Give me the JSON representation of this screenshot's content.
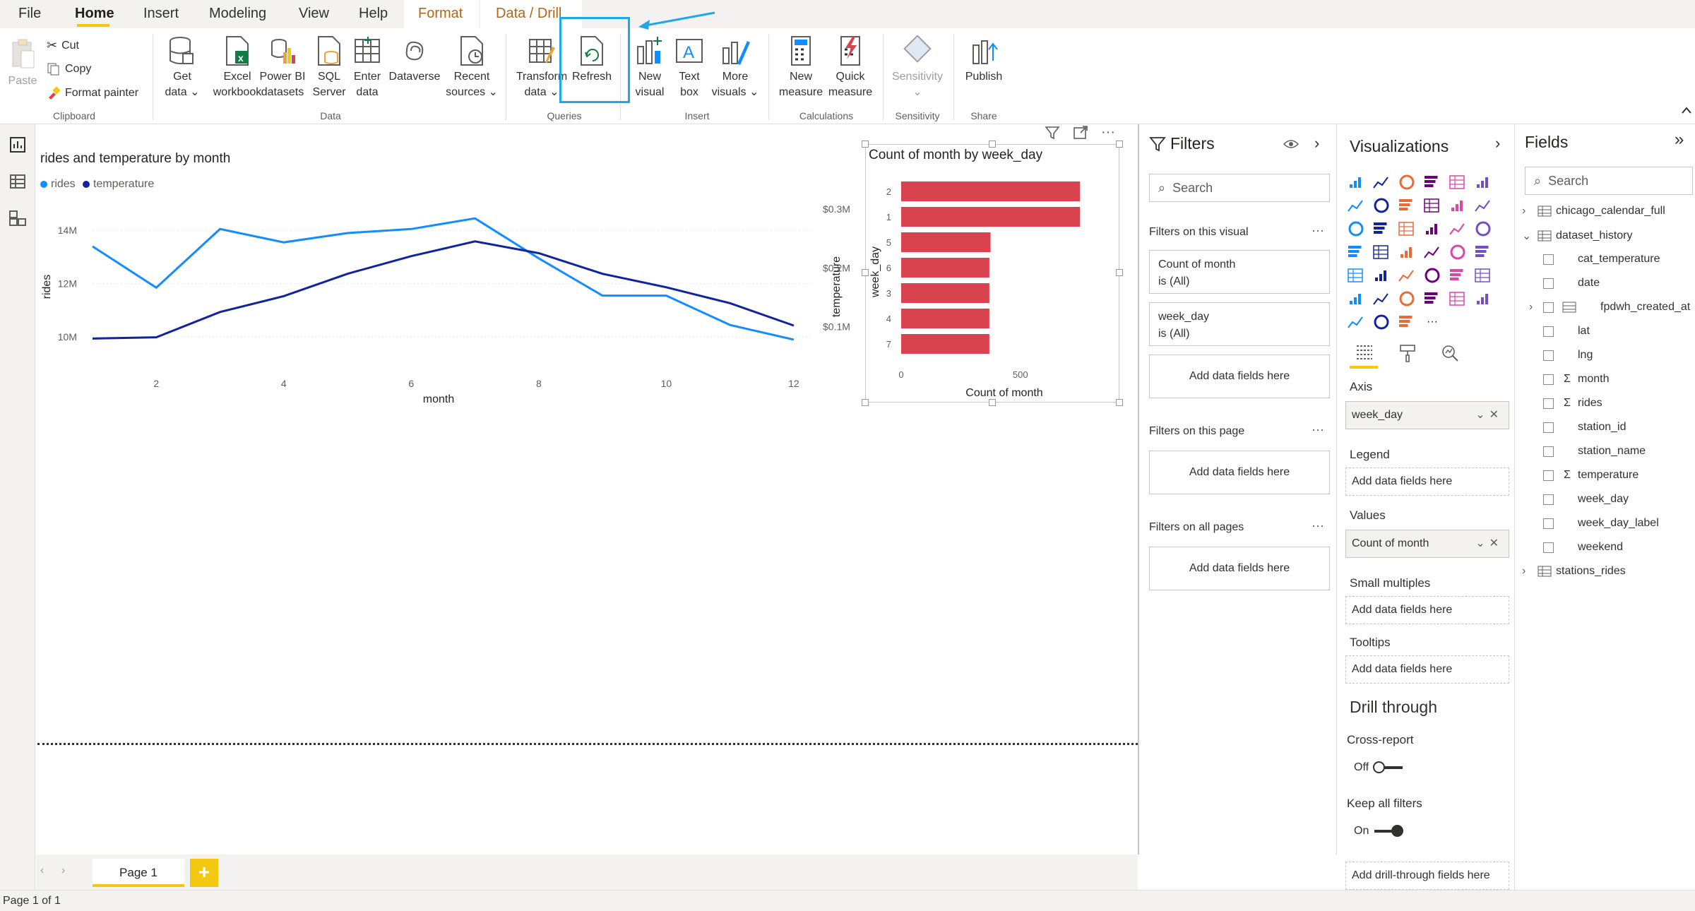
{
  "menu": {
    "items": [
      "File",
      "Home",
      "Insert",
      "Modeling",
      "View",
      "Help",
      "Format",
      "Data / Drill"
    ],
    "active": "Home"
  },
  "ribbon": {
    "clipboard": {
      "paste": "Paste",
      "cut": "Cut",
      "copy": "Copy",
      "format_painter": "Format painter",
      "group": "Clipboard"
    },
    "data": {
      "get_data": [
        "Get",
        "data ⌄"
      ],
      "excel": [
        "Excel",
        "workbook"
      ],
      "pbi": [
        "Power BI",
        "datasets"
      ],
      "sql": [
        "SQL",
        "Server"
      ],
      "enter": [
        "Enter",
        "data"
      ],
      "dataverse": "Dataverse",
      "recent": [
        "Recent",
        "sources ⌄"
      ],
      "group": "Data"
    },
    "queries": {
      "transform": [
        "Transform",
        "data ⌄"
      ],
      "refresh": "Refresh",
      "group": "Queries"
    },
    "insert": {
      "new_visual": [
        "New",
        "visual"
      ],
      "text_box": [
        "Text",
        "box"
      ],
      "more_visuals": [
        "More",
        "visuals ⌄"
      ],
      "group": "Insert"
    },
    "calculations": {
      "new_measure": [
        "New",
        "measure"
      ],
      "quick_measure": [
        "Quick",
        "measure"
      ],
      "group": "Calculations"
    },
    "sensitivity": {
      "label": "Sensitivity",
      "caret": "⌄",
      "group": "Sensitivity"
    },
    "share": {
      "publish": "Publish",
      "group": "Share"
    }
  },
  "line_chart": {
    "title": "rides and temperature by month",
    "legend": [
      "rides",
      "temperature"
    ],
    "xlabel": "month",
    "ylabel_left": "rides",
    "ylabel_right": "temperature",
    "x_ticks": [
      "2",
      "4",
      "6",
      "8",
      "10",
      "12"
    ],
    "y_left_ticks": [
      "10M",
      "12M",
      "14M"
    ],
    "y_right_ticks": [
      "$0.1M",
      "$0.2M",
      "$0.3M"
    ]
  },
  "bar_chart": {
    "title": "Count of month by week_day",
    "xlabel": "Count of month",
    "ylabel": "week_day",
    "x_ticks": [
      "0",
      "500"
    ]
  },
  "chart_data": [
    {
      "type": "line",
      "title": "rides and temperature by month",
      "xlabel": "month",
      "x": [
        1,
        2,
        3,
        4,
        5,
        6,
        7,
        8,
        9,
        10,
        11,
        12
      ],
      "series": [
        {
          "name": "rides",
          "axis": "left",
          "color": "#118dff",
          "values": [
            13.4,
            11.85,
            14.05,
            13.55,
            13.9,
            14.05,
            14.45,
            12.95,
            11.55,
            11.55,
            10.45,
            9.9
          ]
        },
        {
          "name": "temperature",
          "axis": "right",
          "color": "#12239e",
          "values": [
            0.08,
            0.082,
            0.125,
            0.152,
            0.19,
            0.22,
            0.245,
            0.225,
            0.19,
            0.167,
            0.14,
            0.102
          ]
        }
      ],
      "ylabel": "rides",
      "ylim": [
        9.5,
        14.8
      ],
      "ylabel_right": "temperature",
      "ylim_right": [
        0.06,
        0.3
      ],
      "grid": true,
      "legend_position": "top-left"
    },
    {
      "type": "bar",
      "orientation": "horizontal",
      "title": "Count of month by week_day",
      "categories": [
        "2",
        "1",
        "5",
        "6",
        "3",
        "4",
        "7"
      ],
      "values": [
        750,
        750,
        375,
        370,
        370,
        370,
        370
      ],
      "color": "#d9434e",
      "xlabel": "Count of month",
      "ylabel": "week_day",
      "xlim": [
        0,
        800
      ]
    }
  ],
  "page_tabs": {
    "page1": "Page 1",
    "add": "+"
  },
  "status": "Page 1 of 1",
  "filters": {
    "title": "Filters",
    "search": "Search",
    "on_visual": "Filters on this visual",
    "cards": [
      {
        "field": "Count of month",
        "state": "is (All)"
      },
      {
        "field": "week_day",
        "state": "is (All)"
      }
    ],
    "add_here": "Add data fields here",
    "on_page": "Filters on this page",
    "on_all": "Filters on all pages",
    "dots": "···"
  },
  "visualizations": {
    "title": "Visualizations",
    "axis_label": "Axis",
    "axis_value": "week_day",
    "legend_label": "Legend",
    "values_label": "Values",
    "values_value": "Count of month",
    "small_multiples": "Small multiples",
    "tooltips": "Tooltips",
    "add_here": "Add data fields here",
    "drill_through": "Drill through",
    "cross_report": "Cross-report",
    "off": "Off",
    "keep_all": "Keep all filters",
    "on": "On",
    "add_drill": "Add drill-through fields here",
    "more": "···"
  },
  "fields": {
    "title": "Fields",
    "search": "Search",
    "tables": [
      {
        "name": "chicago_calendar_full",
        "expanded": false
      },
      {
        "name": "dataset_history",
        "expanded": true
      },
      {
        "name": "stations_rides",
        "expanded": false
      }
    ],
    "columns": [
      {
        "name": "cat_temperature",
        "sigma": false
      },
      {
        "name": "date",
        "sigma": false
      },
      {
        "name": "fpdwh_created_at",
        "sigma": false,
        "table": true
      },
      {
        "name": "lat",
        "sigma": false
      },
      {
        "name": "lng",
        "sigma": false
      },
      {
        "name": "month",
        "sigma": true
      },
      {
        "name": "rides",
        "sigma": true
      },
      {
        "name": "station_id",
        "sigma": false
      },
      {
        "name": "station_name",
        "sigma": false
      },
      {
        "name": "temperature",
        "sigma": true
      },
      {
        "name": "week_day",
        "sigma": false
      },
      {
        "name": "week_day_label",
        "sigma": false
      },
      {
        "name": "weekend",
        "sigma": false
      }
    ]
  },
  "colors": {
    "accent": "#f2c811",
    "highlight": "#1ea8e8",
    "rides": "#118dff",
    "temperature": "#12239e",
    "bar": "#d9434e"
  }
}
